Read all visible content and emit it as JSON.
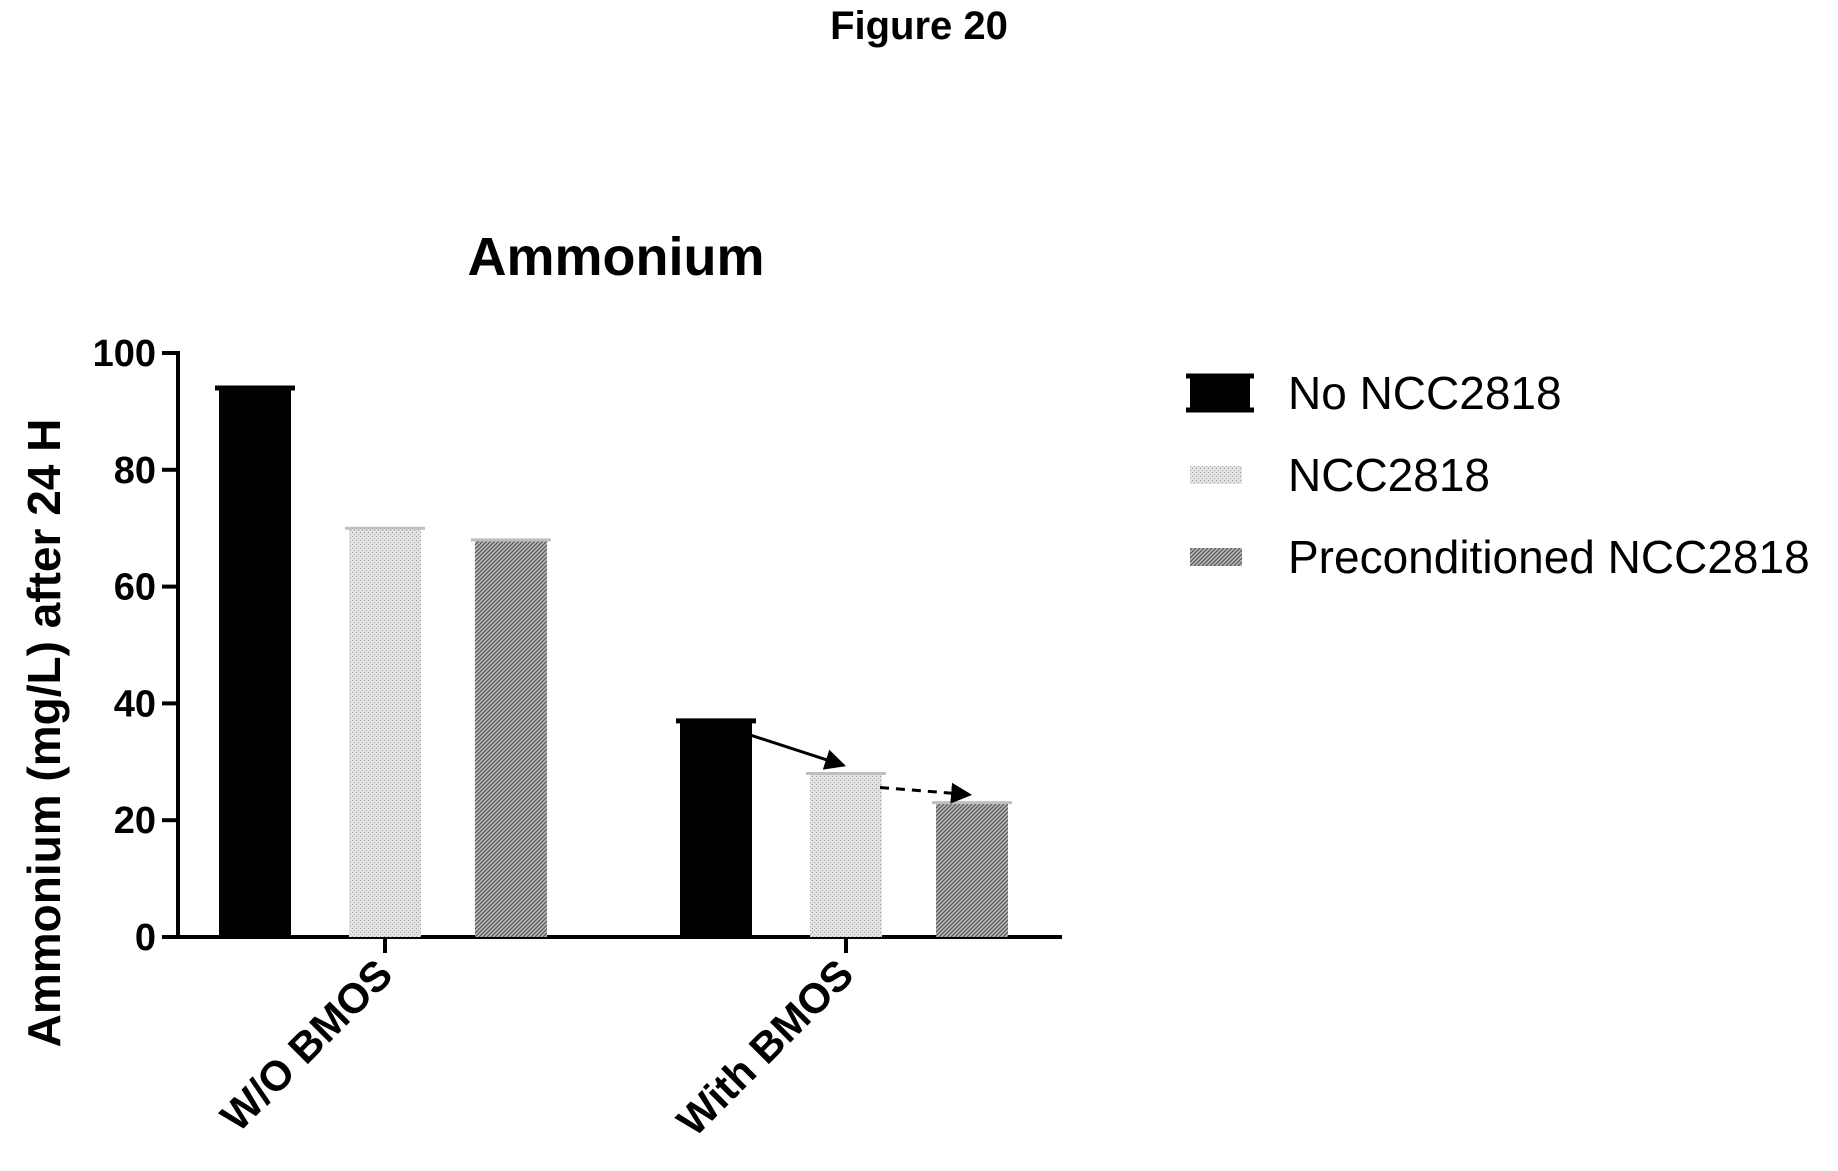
{
  "figure_label": "Figure 20",
  "chart_data": {
    "type": "bar",
    "title": "Ammonium",
    "xlabel": "",
    "ylabel": "Ammonium (mg/L) after 24 H",
    "ylim": [
      0,
      100
    ],
    "yticks": [
      0,
      20,
      40,
      60,
      80,
      100
    ],
    "categories": [
      "W/O BMOS",
      "With BMOS"
    ],
    "series": [
      {
        "name": "No NCC2818",
        "values": [
          94,
          37
        ],
        "color": "#000000",
        "pattern": "solid"
      },
      {
        "name": "NCC2818",
        "values": [
          70,
          28
        ],
        "color": "#d4d4d4",
        "pattern": "light-dots"
      },
      {
        "name": "Preconditioned NCC2818",
        "values": [
          68,
          23
        ],
        "color": "#9a9a9a",
        "pattern": "dark-hatch"
      }
    ],
    "grid": false,
    "legend_position": "right",
    "annotations": [
      {
        "type": "arrow",
        "style": "solid",
        "category": "With BMOS",
        "from_series": "No NCC2818",
        "to_series": "NCC2818"
      },
      {
        "type": "arrow",
        "style": "dashed",
        "category": "With BMOS",
        "from_series": "NCC2818",
        "to_series": "Preconditioned NCC2818"
      }
    ]
  }
}
